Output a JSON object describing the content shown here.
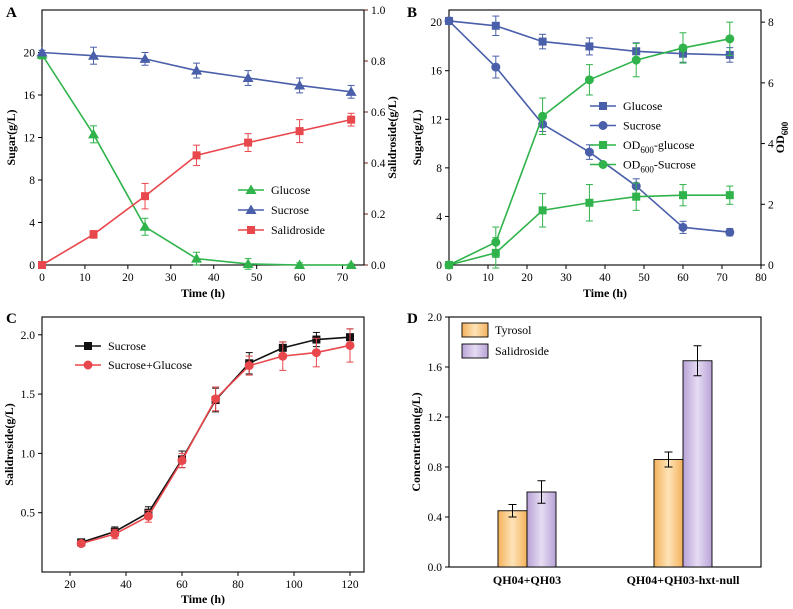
{
  "chart_data": [
    {
      "panel_label": "A",
      "type": "line",
      "xlabel": "Time (h)",
      "ylabel": "Sugar(g/L)",
      "y2label": "Salidroside(g/L)",
      "xlim": [
        0,
        75
      ],
      "ylim": [
        0,
        24
      ],
      "y2lim": [
        0,
        1.0
      ],
      "xticks": [
        0,
        10,
        20,
        30,
        40,
        50,
        60,
        70
      ],
      "yticks": [
        0,
        4,
        8,
        12,
        16,
        20
      ],
      "y2ticks": [
        0.0,
        0.2,
        0.4,
        0.6,
        0.8,
        1.0
      ],
      "legend_position": "lower-right",
      "series": [
        {
          "name": "Glucose",
          "axis": "left",
          "color": "#2fb34a",
          "marker": "triangle",
          "x": [
            0,
            12,
            24,
            36,
            48,
            60,
            72
          ],
          "y": [
            19.8,
            12.3,
            3.6,
            0.6,
            0.1,
            0.0,
            0.0
          ],
          "err": [
            0.4,
            0.8,
            0.8,
            0.6,
            0.5,
            0.2,
            0.1
          ]
        },
        {
          "name": "Sucrose",
          "axis": "left",
          "color": "#4a5faa",
          "marker": "triangle",
          "x": [
            0,
            12,
            24,
            36,
            48,
            60,
            72
          ],
          "y": [
            20.0,
            19.7,
            19.4,
            18.3,
            17.6,
            16.9,
            16.3
          ],
          "err": [
            0.2,
            0.8,
            0.6,
            0.7,
            0.7,
            0.7,
            0.6
          ]
        },
        {
          "name": "Salidroside",
          "axis": "right",
          "color": "#e8474c",
          "marker": "square",
          "x": [
            0,
            12,
            24,
            36,
            48,
            60,
            72
          ],
          "y": [
            0.0,
            0.12,
            0.27,
            0.43,
            0.48,
            0.525,
            0.57
          ],
          "err": [
            0.0,
            0.015,
            0.05,
            0.04,
            0.035,
            0.045,
            0.025
          ]
        }
      ]
    },
    {
      "panel_label": "B",
      "type": "line",
      "xlabel": "Time (h)",
      "ylabel": "Sugar(g/L)",
      "y2label": "OD600",
      "y2label_main": "OD",
      "y2label_sub": "600",
      "xlim": [
        0,
        80
      ],
      "ylim": [
        0,
        21
      ],
      "y2lim": [
        0,
        8.4
      ],
      "xticks": [
        0,
        10,
        20,
        30,
        40,
        50,
        60,
        70,
        80
      ],
      "yticks": [
        0,
        4,
        8,
        12,
        16,
        20
      ],
      "y2ticks": [
        0,
        2,
        4,
        6,
        8
      ],
      "legend_position": "center-right",
      "series": [
        {
          "name": "Glucose",
          "axis": "left",
          "color": "#4a5faa",
          "marker": "square",
          "x": [
            0,
            12,
            24,
            36,
            48,
            60,
            72
          ],
          "y": [
            20.1,
            19.7,
            18.4,
            18.0,
            17.6,
            17.4,
            17.3
          ],
          "err": [
            0.2,
            0.8,
            0.6,
            0.7,
            0.7,
            0.7,
            0.6
          ]
        },
        {
          "name": "Sucrose",
          "axis": "left",
          "color": "#4a5faa",
          "marker": "circle",
          "x": [
            0,
            12,
            24,
            36,
            48,
            60,
            72
          ],
          "y": [
            20.1,
            16.3,
            11.6,
            9.3,
            6.5,
            3.1,
            2.7
          ],
          "err": [
            0.2,
            0.9,
            0.6,
            0.6,
            0.6,
            0.5,
            0.3
          ]
        },
        {
          "name": "OD600-glucose",
          "label_main": "OD",
          "label_sub": "600",
          "label_tail": "-glucose",
          "axis": "right",
          "color": "#2fb34a",
          "marker": "square",
          "x": [
            0,
            12,
            24,
            36,
            48,
            60,
            72
          ],
          "y": [
            0.0,
            0.4,
            1.8,
            2.05,
            2.25,
            2.3,
            2.3
          ],
          "err": [
            0.0,
            0.5,
            0.55,
            0.6,
            0.45,
            0.35,
            0.3
          ]
        },
        {
          "name": "OD600-Sucrose",
          "label_main": "OD",
          "label_sub": "600",
          "label_tail": "-Sucrose",
          "axis": "right",
          "color": "#2fb34a",
          "marker": "circle",
          "x": [
            0,
            12,
            24,
            36,
            48,
            60,
            72
          ],
          "y": [
            0.0,
            0.75,
            4.9,
            6.1,
            6.75,
            7.15,
            7.45
          ],
          "err": [
            0.0,
            0.5,
            0.6,
            0.5,
            0.55,
            0.5,
            0.55
          ]
        }
      ]
    },
    {
      "panel_label": "C",
      "type": "line",
      "xlabel": "Time (h)",
      "ylabel": "Salidroside(g/L)",
      "xlim": [
        10,
        125
      ],
      "ylim": [
        0,
        2.15
      ],
      "xticks": [
        20,
        40,
        60,
        80,
        100,
        120
      ],
      "yticks": [
        0.5,
        1.0,
        1.5,
        2.0
      ],
      "legend_position": "top-left",
      "series": [
        {
          "name": "Sucrose",
          "color": "#111111",
          "marker": "square",
          "x": [
            24,
            36,
            48,
            60,
            72,
            84,
            96,
            108,
            120
          ],
          "y": [
            0.25,
            0.34,
            0.5,
            0.95,
            1.45,
            1.76,
            1.89,
            1.96,
            1.98
          ],
          "err": [
            0.02,
            0.04,
            0.05,
            0.07,
            0.1,
            0.09,
            0.05,
            0.06,
            0.07
          ]
        },
        {
          "name": "Sucrose+Glucose",
          "color": "#e8474c",
          "marker": "circle",
          "x": [
            24,
            36,
            48,
            60,
            72,
            84,
            96,
            108,
            120
          ],
          "y": [
            0.24,
            0.32,
            0.47,
            0.94,
            1.46,
            1.74,
            1.82,
            1.85,
            1.91
          ],
          "err": [
            0.02,
            0.04,
            0.05,
            0.06,
            0.1,
            0.08,
            0.12,
            0.12,
            0.14
          ]
        }
      ]
    },
    {
      "panel_label": "D",
      "type": "bar",
      "xlabel": "",
      "ylabel": "Concentration(g/L)",
      "ylim": [
        0,
        2.0
      ],
      "yticks": [
        0.0,
        0.4,
        0.8,
        1.2,
        1.6,
        2.0
      ],
      "categories": [
        "QH04+QH03",
        "QH04+QH03-hxt-null"
      ],
      "legend_position": "top-left",
      "series": [
        {
          "name": "Tyrosol",
          "color": "#f5b25c",
          "values": [
            0.45,
            0.86
          ],
          "err": [
            0.05,
            0.06
          ]
        },
        {
          "name": "Salidroside",
          "color": "#b7a2d6",
          "values": [
            0.6,
            1.65
          ],
          "err": [
            0.09,
            0.12
          ]
        }
      ]
    }
  ]
}
